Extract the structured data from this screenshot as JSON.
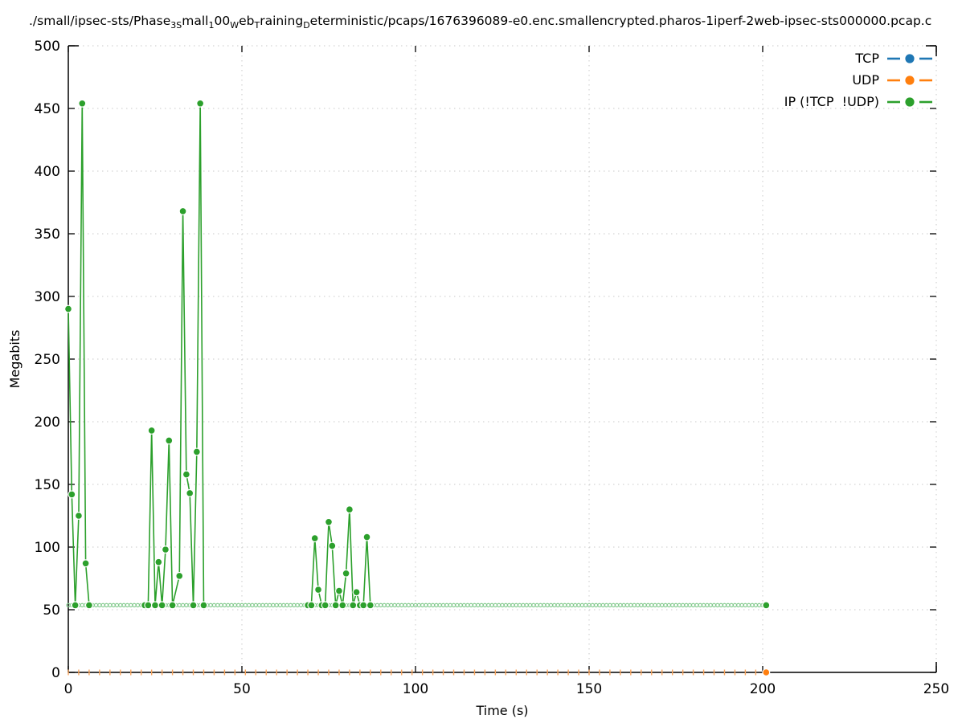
{
  "title": {
    "full_text": "./small/ipsec-sts/Phase3Small100WebTrainingDeterministic/pcaps/1676396089-e0.enc.smallencrypted.pharos-1iperf-2web-ipsec-sts000000.pcap.c",
    "segments": [
      {
        "t": "./small/ipsec-sts/Phase",
        "sub": false
      },
      {
        "t": "3S",
        "sub": true
      },
      {
        "t": "mall",
        "sub": false
      },
      {
        "t": "1",
        "sub": true
      },
      {
        "t": "00",
        "sub": false
      },
      {
        "t": "W",
        "sub": true
      },
      {
        "t": "eb",
        "sub": false
      },
      {
        "t": "T",
        "sub": true
      },
      {
        "t": "raining",
        "sub": false
      },
      {
        "t": "D",
        "sub": true
      },
      {
        "t": "eterministic/pcaps/1676396089-e0.enc.smallencrypted.pharos-1iperf-2web-ipsec-sts000000.pcap.c",
        "sub": false
      }
    ]
  },
  "colors": {
    "axis": "#000000",
    "grid": "#c9c9c9",
    "pale_green_marker": "#85cb8f",
    "pale_orange_marker": "#f9a45c",
    "background": "#ffffff"
  },
  "chart_data": {
    "type": "line",
    "title": "./small/ipsec-sts/Phase3Small100WebTrainingDeterministic/pcaps/1676396089-e0.enc.smallencrypted.pharos-1iperf-2web-ipsec-sts000000.pcap.c",
    "xlabel": "Time (s)",
    "ylabel": "Megabits",
    "xlim": [
      0,
      250
    ],
    "ylim": [
      0,
      500
    ],
    "xticks": [
      0,
      50,
      100,
      150,
      200,
      250
    ],
    "yticks": [
      0,
      50,
      100,
      150,
      200,
      250,
      300,
      350,
      400,
      450,
      500
    ],
    "grid": true,
    "legend_position": "top-right-inside",
    "series": [
      {
        "name": "TCP",
        "color": "#1f77b4",
        "segments": [],
        "points": []
      },
      {
        "name": "UDP",
        "color": "#ff7f0e",
        "baseline_value": 0,
        "marker_ticks": {
          "t_start": 0,
          "t_end": 198,
          "step": 3
        },
        "points": [
          [
            201,
            0
          ]
        ]
      },
      {
        "name": "IP (!TCP  !UDP)",
        "color": "#2ca02c",
        "steady_state_value": 53.6,
        "steady_marker_seconds": {
          "t_start": 0,
          "t_end": 201,
          "step": 1
        },
        "segments": [
          [
            [
              0,
              290
            ],
            [
              1,
              142
            ],
            [
              2,
              53.6
            ],
            [
              3,
              125
            ],
            [
              4,
              454
            ],
            [
              5,
              87
            ],
            [
              6,
              53.6
            ]
          ],
          [
            [
              22,
              53.6
            ],
            [
              23,
              53.6
            ],
            [
              24,
              193
            ],
            [
              25,
              53.6
            ],
            [
              26,
              88
            ],
            [
              27,
              53.6
            ],
            [
              28,
              98
            ],
            [
              29,
              185
            ],
            [
              30,
              53.6
            ],
            [
              32,
              77
            ],
            [
              33,
              368
            ],
            [
              34,
              158
            ],
            [
              35,
              143
            ],
            [
              36,
              53.6
            ],
            [
              37,
              176
            ],
            [
              38,
              454
            ],
            [
              39,
              53.6
            ]
          ],
          [
            [
              69,
              53.6
            ],
            [
              70,
              53.6
            ],
            [
              71,
              107
            ],
            [
              72,
              66
            ],
            [
              73,
              53.6
            ],
            [
              74,
              53.6
            ],
            [
              75,
              120
            ],
            [
              76,
              101
            ],
            [
              77,
              53.6
            ],
            [
              78,
              65
            ],
            [
              79,
              53.6
            ],
            [
              80,
              79
            ],
            [
              81,
              130
            ],
            [
              82,
              53.6
            ],
            [
              83,
              64
            ],
            [
              84,
              53.6
            ],
            [
              85,
              53.6
            ],
            [
              86,
              108
            ],
            [
              87,
              53.6
            ]
          ]
        ],
        "points": [
          [
            201,
            53.6
          ]
        ]
      }
    ]
  }
}
